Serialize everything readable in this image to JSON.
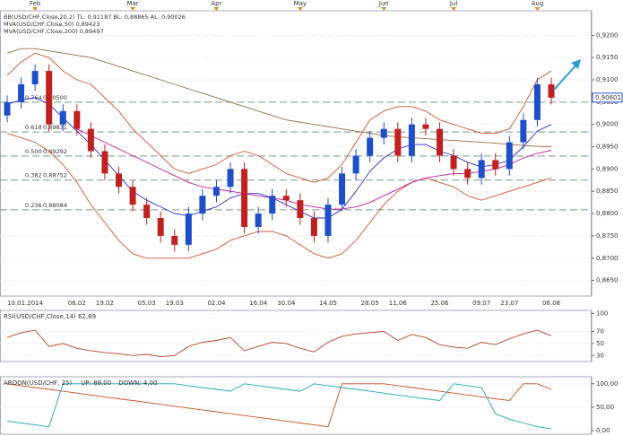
{
  "chart_data": [
    {
      "type": "candlestick",
      "indicator_labels": [
        {
          "text": "BB(USD/CHF,Close,20,2)  TL: 0,91187  BL: 0,88865  AL: 0,90026",
          "color": "#c0392b"
        },
        {
          "text": "MVA(USD/CHF,Close,50)  0,89423",
          "color": "#b0189a"
        },
        {
          "text": "MVA(USD/CHF,Close,200)  0,89497",
          "color": "#8b5a2b"
        }
      ],
      "categories": [
        "10.01.2014",
        null,
        null,
        null,
        null,
        "06.02",
        null,
        "19.02",
        null,
        null,
        "05.03",
        null,
        "19.03",
        null,
        null,
        "02.04",
        null,
        null,
        "16.04",
        null,
        "30.04",
        null,
        null,
        "14.05",
        null,
        null,
        "28.05",
        null,
        "11.06",
        null,
        null,
        "25.06",
        null,
        null,
        "09.07",
        null,
        "23.07",
        null,
        null,
        "06.08"
      ],
      "months": [
        null,
        null,
        "Feb",
        null,
        null,
        null,
        null,
        null,
        null,
        "Mar",
        null,
        null,
        null,
        null,
        null,
        "Apr",
        null,
        null,
        null,
        null,
        null,
        "May",
        null,
        null,
        null,
        null,
        null,
        "Jun",
        null,
        null,
        null,
        null,
        "Jul",
        null,
        null,
        null,
        null,
        null,
        "Aug",
        null
      ],
      "open": [
        0.902,
        0.905,
        0.909,
        0.912,
        0.9,
        0.903,
        0.899,
        0.894,
        0.889,
        0.886,
        0.882,
        0.879,
        0.875,
        0.873,
        0.88,
        0.884,
        0.886,
        0.89,
        0.877,
        0.88,
        0.884,
        0.883,
        0.879,
        0.875,
        0.882,
        0.889,
        0.893,
        0.897,
        0.899,
        0.893,
        0.9,
        0.899,
        0.893,
        0.89,
        0.888,
        0.892,
        0.89,
        0.896,
        0.901,
        0.909
      ],
      "high": [
        0.9065,
        0.9105,
        0.9135,
        0.9135,
        0.9045,
        0.9045,
        0.9005,
        0.8955,
        0.8905,
        0.8875,
        0.8835,
        0.8805,
        0.8765,
        0.8815,
        0.8855,
        0.8875,
        0.8915,
        0.8915,
        0.8815,
        0.8855,
        0.8855,
        0.8845,
        0.8805,
        0.8835,
        0.8905,
        0.8945,
        0.8985,
        0.9005,
        0.9005,
        0.9015,
        0.9015,
        0.9005,
        0.8945,
        0.8915,
        0.8935,
        0.8935,
        0.8975,
        0.9025,
        0.9105,
        0.9105
      ],
      "low": [
        0.9005,
        0.9035,
        0.9075,
        0.8985,
        0.8985,
        0.8975,
        0.8925,
        0.8875,
        0.8845,
        0.8805,
        0.8775,
        0.8735,
        0.8715,
        0.8715,
        0.8785,
        0.8825,
        0.8845,
        0.8755,
        0.8755,
        0.8785,
        0.8815,
        0.8775,
        0.8735,
        0.8735,
        0.8805,
        0.8875,
        0.8915,
        0.8955,
        0.8915,
        0.8915,
        0.8975,
        0.8915,
        0.8885,
        0.8865,
        0.8865,
        0.8885,
        0.8885,
        0.8945,
        0.8995,
        0.9045
      ],
      "close": [
        0.905,
        0.909,
        0.912,
        0.9,
        0.903,
        0.899,
        0.894,
        0.889,
        0.886,
        0.882,
        0.879,
        0.875,
        0.873,
        0.88,
        0.884,
        0.886,
        0.89,
        0.877,
        0.88,
        0.884,
        0.883,
        0.879,
        0.875,
        0.882,
        0.889,
        0.893,
        0.897,
        0.899,
        0.893,
        0.9,
        0.899,
        0.893,
        0.89,
        0.888,
        0.892,
        0.89,
        0.896,
        0.901,
        0.909,
        0.906
      ],
      "up_color": "#1f4fc8",
      "down_color": "#c0201f",
      "series": [
        {
          "color": "#d2542a",
          "values": [
            0.911,
            0.914,
            0.916,
            0.915,
            0.912,
            0.91,
            0.909,
            0.906,
            0.903,
            0.899,
            0.896,
            0.893,
            0.89,
            0.889,
            0.89,
            0.891,
            0.893,
            0.894,
            0.893,
            0.891,
            0.889,
            0.888,
            0.887,
            0.888,
            0.891,
            0.896,
            0.901,
            0.903,
            0.904,
            0.904,
            0.903,
            0.901,
            0.9,
            0.899,
            0.898,
            0.898,
            0.899,
            0.904,
            0.91,
            0.912
          ]
        },
        {
          "color": "#d2542a",
          "values": [
            0.898,
            0.897,
            0.896,
            0.894,
            0.891,
            0.887,
            0.882,
            0.878,
            0.874,
            0.871,
            0.87,
            0.87,
            0.87,
            0.87,
            0.871,
            0.872,
            0.874,
            0.875,
            0.876,
            0.876,
            0.875,
            0.873,
            0.871,
            0.87,
            0.871,
            0.874,
            0.878,
            0.882,
            0.885,
            0.887,
            0.888,
            0.887,
            0.886,
            0.884,
            0.883,
            0.884,
            0.885,
            0.886,
            0.887,
            0.888
          ]
        },
        {
          "color": "#2a2ad8",
          "values": [
            0.9045,
            0.9055,
            0.906,
            0.9045,
            0.9015,
            0.8985,
            0.8955,
            0.892,
            0.8885,
            0.885,
            0.883,
            0.8815,
            0.88,
            0.8795,
            0.8805,
            0.8815,
            0.8835,
            0.8845,
            0.8845,
            0.8835,
            0.882,
            0.8805,
            0.879,
            0.879,
            0.881,
            0.885,
            0.8895,
            0.8925,
            0.8945,
            0.8955,
            0.8955,
            0.894,
            0.893,
            0.8915,
            0.8905,
            0.891,
            0.892,
            0.895,
            0.8985,
            0.9
          ]
        },
        {
          "color": "#c8189e",
          "values": [
            null,
            null,
            null,
            null,
            null,
            0.899,
            0.8975,
            0.896,
            0.8945,
            0.893,
            0.8915,
            0.89,
            0.8885,
            0.887,
            0.886,
            0.8855,
            0.885,
            0.8845,
            0.884,
            0.8835,
            0.883,
            0.882,
            0.8815,
            0.881,
            0.881,
            0.8815,
            0.8825,
            0.884,
            0.8855,
            0.887,
            0.888,
            0.8885,
            0.889,
            0.889,
            0.8895,
            0.89,
            0.891,
            0.8925,
            0.8935,
            0.8942
          ]
        },
        {
          "color": "#9a6a3a",
          "values": [
            0.916,
            0.917,
            0.917,
            0.9165,
            0.916,
            0.9155,
            0.915,
            0.914,
            0.913,
            0.912,
            0.911,
            0.91,
            0.909,
            0.908,
            0.907,
            0.906,
            0.905,
            0.904,
            0.903,
            0.902,
            0.901,
            0.9005,
            0.9,
            0.8995,
            0.899,
            0.8985,
            0.898,
            0.8975,
            0.8972,
            0.897,
            0.8968,
            0.8966,
            0.8964,
            0.8962,
            0.896,
            0.8958,
            0.8955,
            0.8953,
            0.8951,
            0.895
          ]
        }
      ],
      "ylim": [
        0.8615,
        0.9255
      ],
      "yticks": [
        {
          "value": 0.92,
          "label": "0,9200"
        },
        {
          "value": 0.915,
          "label": "0,9150"
        },
        {
          "value": 0.91,
          "label": "0,9100"
        },
        {
          "value": 0.905,
          "label": "0,9050"
        },
        {
          "value": 0.9,
          "label": "0,9000"
        },
        {
          "value": 0.895,
          "label": "0,8950"
        },
        {
          "value": 0.89,
          "label": "0,8900"
        },
        {
          "value": 0.885,
          "label": "0,8850"
        },
        {
          "value": 0.88,
          "label": "0,8800"
        },
        {
          "value": 0.875,
          "label": "0,8750"
        },
        {
          "value": 0.87,
          "label": "0,8700"
        },
        {
          "value": 0.865,
          "label": "0,8650"
        }
      ],
      "fib_levels": [
        {
          "ratio": 0.764,
          "price": {
            "value": 0.905,
            "label": "0,90500"
          }
        },
        {
          "ratio": 0.618,
          "price": {
            "value": 0.89831,
            "label": "0,89831"
          }
        },
        {
          "ratio": {
            "value": 0.5,
            "label": "0.500"
          },
          "price": {
            "value": 0.89292,
            "label": "0,89292"
          }
        },
        {
          "ratio": 0.382,
          "price": {
            "value": 0.88752,
            "label": "0,88752"
          }
        },
        {
          "ratio": 0.236,
          "price": {
            "value": 0.88084,
            "label": "0,88084"
          }
        }
      ],
      "last_price": {
        "value": 0.90601,
        "label": "0,90601"
      },
      "grid": true
    },
    {
      "type": "line",
      "title": "RSI(USD/CHF,Close,14)  62,69",
      "series": [
        {
          "color": "#b5461e",
          "values": [
            60,
            68,
            72,
            45,
            50,
            42,
            38,
            35,
            33,
            30,
            32,
            28,
            30,
            45,
            52,
            55,
            60,
            38,
            45,
            52,
            50,
            42,
            36,
            52,
            62,
            66,
            68,
            70,
            55,
            65,
            60,
            48,
            44,
            42,
            52,
            48,
            58,
            66,
            72,
            63
          ]
        }
      ],
      "ylim": [
        20,
        105
      ],
      "yticks": [
        100,
        70,
        50,
        30
      ],
      "grid": true
    },
    {
      "type": "line",
      "title": "AROON(USD/CHF, 25)",
      "series": [
        {
          "name": "UP: 88,00",
          "color": "#c8501e",
          "values": [
            100,
            96,
            92,
            88,
            84,
            80,
            76,
            72,
            68,
            64,
            60,
            56,
            52,
            48,
            44,
            40,
            36,
            32,
            28,
            24,
            20,
            16,
            12,
            8,
            100,
            100,
            100,
            100,
            96,
            92,
            88,
            84,
            80,
            76,
            72,
            68,
            64,
            100,
            100,
            88
          ]
        },
        {
          "name": "DOWN: 4,00",
          "color": "#1aa8b8",
          "values": [
            20,
            16,
            12,
            8,
            100,
            100,
            100,
            100,
            100,
            100,
            100,
            100,
            100,
            96,
            92,
            88,
            84,
            100,
            96,
            92,
            88,
            84,
            100,
            96,
            92,
            88,
            84,
            80,
            76,
            72,
            68,
            64,
            100,
            96,
            92,
            36,
            24,
            16,
            8,
            4
          ]
        }
      ],
      "ylim": [
        -8,
        115
      ],
      "yticks": [
        {
          "value": 100,
          "label": "100,00"
        },
        {
          "value": 50,
          "label": "50,00"
        },
        {
          "value": 0,
          "label": "0,00"
        }
      ],
      "grid": true
    }
  ]
}
